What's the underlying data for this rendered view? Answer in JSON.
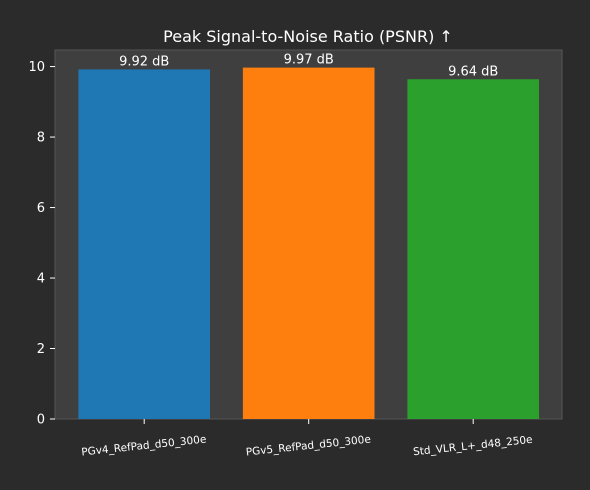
{
  "chart_data": {
    "type": "bar",
    "title": "Peak Signal-to-Noise Ratio (PSNR) ↑",
    "xlabel": "",
    "ylabel": "",
    "categories": [
      "PGv4_RefPad_d50_300e",
      "PGv5_RefPad_d50_300e",
      "Std_VLR_L+_d48_250e"
    ],
    "values": [
      9.92,
      9.97,
      9.64
    ],
    "data_labels": [
      "9.92 dB",
      "9.97 dB",
      "9.64 dB"
    ],
    "colors": [
      "#1f77b4",
      "#ff7f0e",
      "#2ca02c"
    ],
    "ylim": [
      0,
      10.47
    ],
    "yticks": [
      0,
      2,
      4,
      6,
      8,
      10
    ],
    "grid": false,
    "legend": "none",
    "background": "#2b2b2b",
    "plot_background": "#3f3f3f"
  }
}
